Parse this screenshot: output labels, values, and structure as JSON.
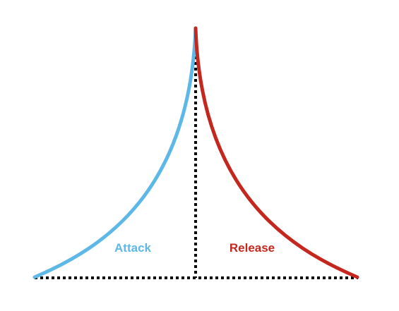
{
  "diagram": {
    "attack_label": "Attack",
    "release_label": "Release",
    "colors": {
      "attack": "#5db8e8",
      "release": "#c4271e",
      "guides": "#000000"
    }
  }
}
